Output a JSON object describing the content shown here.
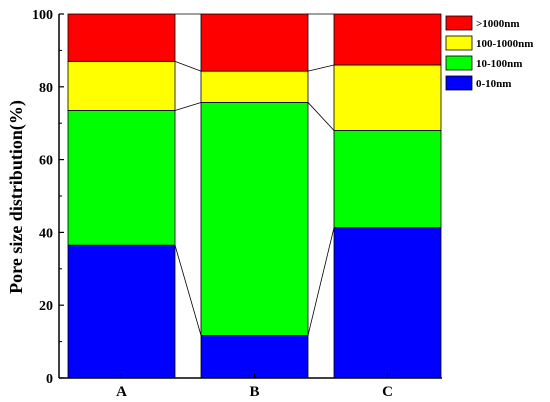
{
  "chart_data": {
    "type": "bar",
    "stacked": true,
    "categories": [
      "A",
      "B",
      "C"
    ],
    "ylabel": "Pore size distribution(%)",
    "xlabel": "",
    "ylim": [
      0,
      100
    ],
    "yticks": [
      "0",
      "20",
      "40",
      "60",
      "80",
      "100"
    ],
    "legend_position": "top-right",
    "series": [
      {
        "name": "0-10nm",
        "color": "#0000ff",
        "values": [
          36.5,
          11.7,
          41.3
        ]
      },
      {
        "name": "10-100nm",
        "color": "#00ff00",
        "values": [
          37.0,
          64.0,
          26.7
        ]
      },
      {
        "name": "100-1000nm",
        "color": "#ffff00",
        "values": [
          13.5,
          8.6,
          18.0
        ]
      },
      {
        "name": ">1000nm",
        "color": "#ff0000",
        "values": [
          13.0,
          15.7,
          14.0
        ]
      }
    ],
    "connector_lines": true
  }
}
